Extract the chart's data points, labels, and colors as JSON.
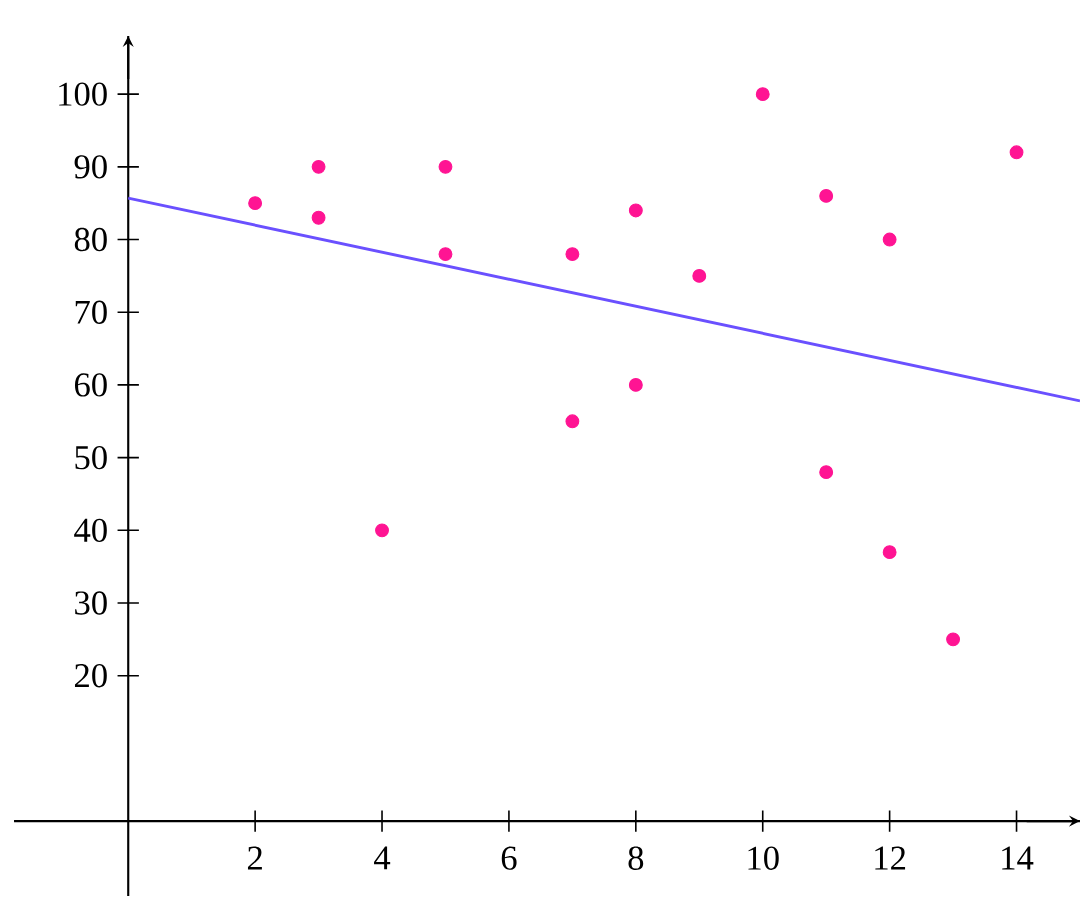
{
  "chart_data": {
    "type": "scatter",
    "xlim": [
      -1.8,
      15
    ],
    "ylim": [
      -10.3,
      108
    ],
    "xticks": [
      2,
      4,
      6,
      8,
      10,
      12,
      14
    ],
    "yticks": [
      20,
      30,
      40,
      50,
      60,
      70,
      80,
      90,
      100
    ],
    "series": [
      {
        "color": "#ff1493",
        "marker": "circle",
        "x": [
          2,
          3,
          3,
          4,
          5,
          5,
          7,
          7,
          8,
          8,
          9,
          10,
          11,
          11,
          12,
          12,
          13,
          14
        ],
        "values": [
          85,
          90,
          83,
          40,
          90,
          78,
          78,
          55,
          84,
          60,
          75,
          100,
          86,
          48,
          80,
          37,
          25,
          92
        ]
      },
      {
        "type": "line",
        "color": "#6a50ff",
        "marker": "none",
        "x": [
          0,
          15
        ],
        "values": [
          85.7,
          57.8
        ]
      }
    ]
  }
}
